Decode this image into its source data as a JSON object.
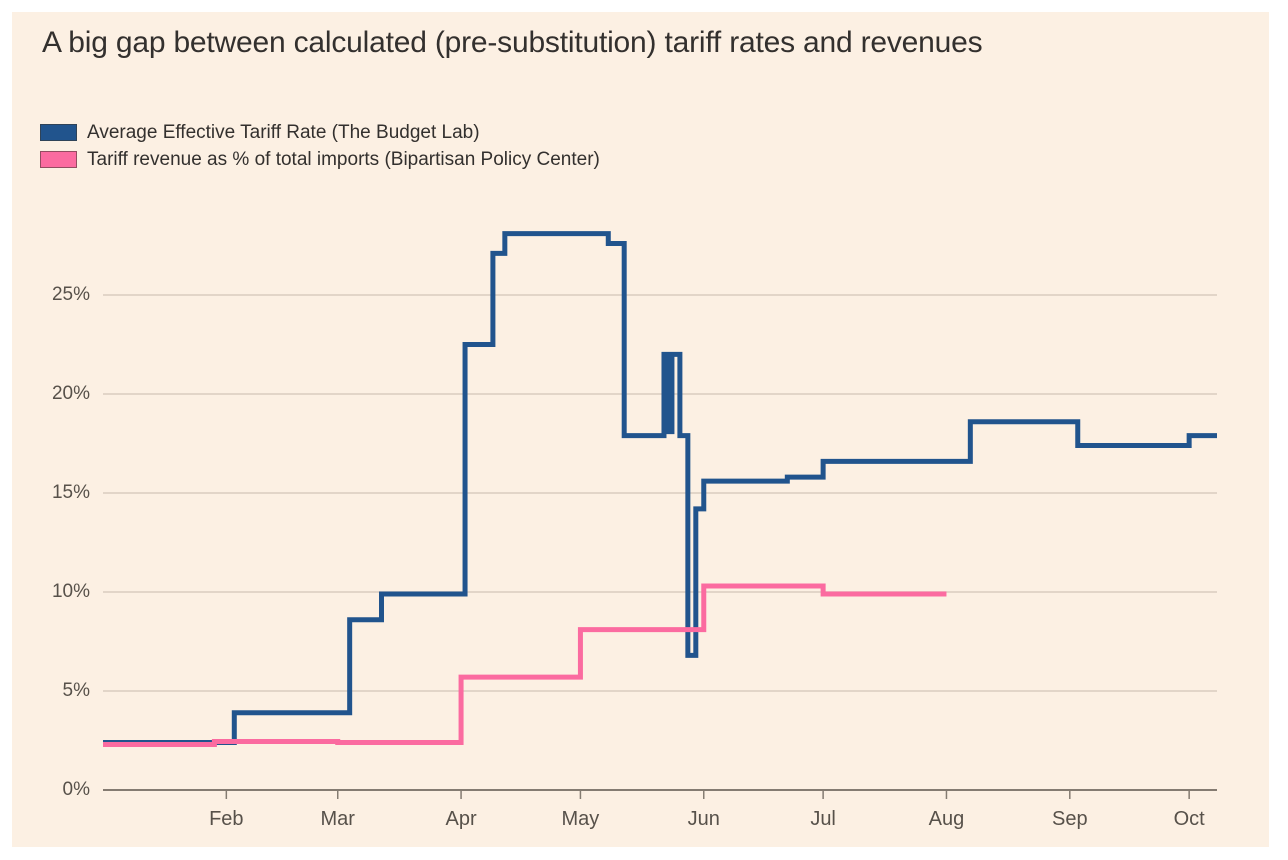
{
  "page": {
    "background_color": "#ffffff",
    "card_background_color": "#fcf0e3",
    "grid_color": "#d9ccbf",
    "axis_color": "#847b71",
    "text_color": "#33302e",
    "axis_label_color": "#57514a"
  },
  "title": {
    "text": "A big gap between calculated (pre-substitution) tariff rates and revenues"
  },
  "legend": [
    {
      "label": "Average Effective Tariff Rate (The Budget Lab)",
      "color": "#21548d"
    },
    {
      "label": "Tariff revenue as % of total imports (Bipartisan Policy Center)",
      "color": "#fb6ba0"
    }
  ],
  "chart_data": {
    "type": "line",
    "line_style": "step-after",
    "title": "A big gap between calculated (pre-substitution) tariff rates and revenues",
    "xlabel": "",
    "ylabel": "",
    "y_unit": "%",
    "y_ticks": [
      0,
      5,
      10,
      15,
      20,
      25
    ],
    "ylim": [
      0,
      29.3
    ],
    "grid": true,
    "legend_position": "top-left",
    "x_start": "2025-01-01",
    "x_end": "2025-10-08",
    "x_tick_labels": [
      "Feb",
      "Mar",
      "Apr",
      "May",
      "Jun",
      "Jul",
      "Aug",
      "Sep",
      "Oct"
    ],
    "x_tick_dates": [
      "2025-02-01",
      "2025-03-01",
      "2025-04-01",
      "2025-05-01",
      "2025-06-01",
      "2025-07-01",
      "2025-08-01",
      "2025-09-01",
      "2025-10-01"
    ],
    "series": [
      {
        "name": "Average Effective Tariff Rate (The Budget Lab)",
        "color": "#21548d",
        "line_width": 5,
        "end_date": "2025-10-08",
        "points": [
          [
            "2025-01-01",
            2.4
          ],
          [
            "2025-02-03",
            3.9
          ],
          [
            "2025-03-04",
            8.6
          ],
          [
            "2025-03-12",
            9.9
          ],
          [
            "2025-04-02",
            22.5
          ],
          [
            "2025-04-09",
            27.1
          ],
          [
            "2025-04-12",
            28.1
          ],
          [
            "2025-05-08",
            27.6
          ],
          [
            "2025-05-12",
            17.9
          ],
          [
            "2025-05-22",
            22.0
          ],
          [
            "2025-05-23",
            18.1
          ],
          [
            "2025-05-24",
            22.0
          ],
          [
            "2025-05-26",
            17.9
          ],
          [
            "2025-05-28",
            6.8
          ],
          [
            "2025-05-30",
            14.2
          ],
          [
            "2025-06-01",
            15.6
          ],
          [
            "2025-06-22",
            15.8
          ],
          [
            "2025-07-01",
            16.6
          ],
          [
            "2025-08-07",
            18.6
          ],
          [
            "2025-09-03",
            17.4
          ],
          [
            "2025-10-01",
            17.9
          ]
        ]
      },
      {
        "name": "Tariff revenue as % of total imports (Bipartisan Policy Center)",
        "color": "#fb6ba0",
        "line_width": 5,
        "end_date": "2025-08-01",
        "points": [
          [
            "2025-01-01",
            2.3
          ],
          [
            "2025-01-29",
            2.45
          ],
          [
            "2025-03-01",
            2.4
          ],
          [
            "2025-04-01",
            5.7
          ],
          [
            "2025-05-01",
            8.1
          ],
          [
            "2025-06-01",
            10.3
          ],
          [
            "2025-07-01",
            9.9
          ]
        ]
      }
    ]
  }
}
